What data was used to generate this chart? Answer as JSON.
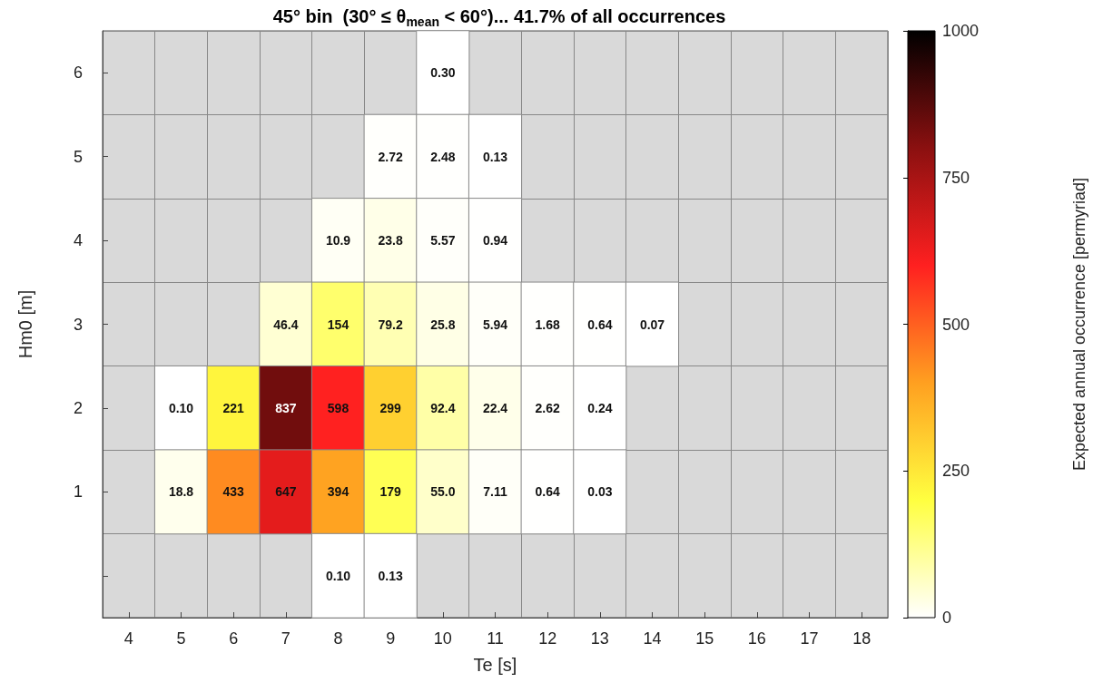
{
  "chart_data": {
    "type": "heatmap",
    "title": "45° bin  (30° ≤ θ$_{mean}$ < 60°)... 41.7% of all occurrences",
    "xlabel": "Te [s]",
    "ylabel": "Hm0 [m]",
    "clabel": "Expected annual occurrence [permyriad]",
    "categories": [
      "4",
      "5",
      "6",
      "7",
      "8",
      "9",
      "10",
      "11",
      "12",
      "13",
      "14",
      "15",
      "16",
      "17",
      "18"
    ],
    "y_categories": [
      "6",
      "5",
      "4",
      "3",
      "2",
      "1",
      null
    ],
    "cells": [
      [
        null,
        null,
        null,
        null,
        null,
        null,
        0.3,
        null,
        null,
        null,
        null,
        null,
        null,
        null,
        null
      ],
      [
        null,
        null,
        null,
        null,
        null,
        2.72,
        2.48,
        0.13,
        null,
        null,
        null,
        null,
        null,
        null,
        null
      ],
      [
        null,
        null,
        null,
        null,
        10.9,
        23.8,
        5.57,
        0.94,
        null,
        null,
        null,
        null,
        null,
        null,
        null
      ],
      [
        null,
        null,
        null,
        46.4,
        154,
        79.2,
        25.8,
        5.94,
        1.68,
        0.64,
        0.07,
        null,
        null,
        null,
        null
      ],
      [
        null,
        0.1,
        221,
        837,
        598,
        299,
        92.4,
        22.4,
        2.62,
        0.24,
        null,
        null,
        null,
        null,
        null
      ],
      [
        null,
        18.8,
        433,
        647,
        394,
        179,
        55.0,
        7.11,
        0.64,
        0.03,
        null,
        null,
        null,
        null,
        null
      ],
      [
        null,
        null,
        null,
        null,
        0.1,
        0.13,
        null,
        null,
        null,
        null,
        null,
        null,
        null,
        null,
        null
      ]
    ],
    "cell_labels": [
      [
        null,
        null,
        null,
        null,
        null,
        null,
        "0.30",
        null,
        null,
        null,
        null,
        null,
        null,
        null,
        null
      ],
      [
        null,
        null,
        null,
        null,
        null,
        "2.72",
        "2.48",
        "0.13",
        null,
        null,
        null,
        null,
        null,
        null,
        null
      ],
      [
        null,
        null,
        null,
        null,
        "10.9",
        "23.8",
        "5.57",
        "0.94",
        null,
        null,
        null,
        null,
        null,
        null,
        null
      ],
      [
        null,
        null,
        null,
        "46.4",
        "154",
        "79.2",
        "25.8",
        "5.94",
        "1.68",
        "0.64",
        "0.07",
        null,
        null,
        null,
        null
      ],
      [
        null,
        "0.10",
        "221",
        "837",
        "598",
        "299",
        "92.4",
        "22.4",
        "2.62",
        "0.24",
        null,
        null,
        null,
        null,
        null
      ],
      [
        null,
        "18.8",
        "433",
        "647",
        "394",
        "179",
        "55.0",
        "7.11",
        "0.64",
        "0.03",
        null,
        null,
        null,
        null,
        null
      ],
      [
        null,
        null,
        null,
        null,
        "0.10",
        "0.13",
        null,
        null,
        null,
        null,
        null,
        null,
        null,
        null,
        null
      ]
    ],
    "clim": [
      0,
      1000
    ],
    "cticks": [
      0,
      250,
      500,
      750,
      1000
    ],
    "grid": true
  }
}
